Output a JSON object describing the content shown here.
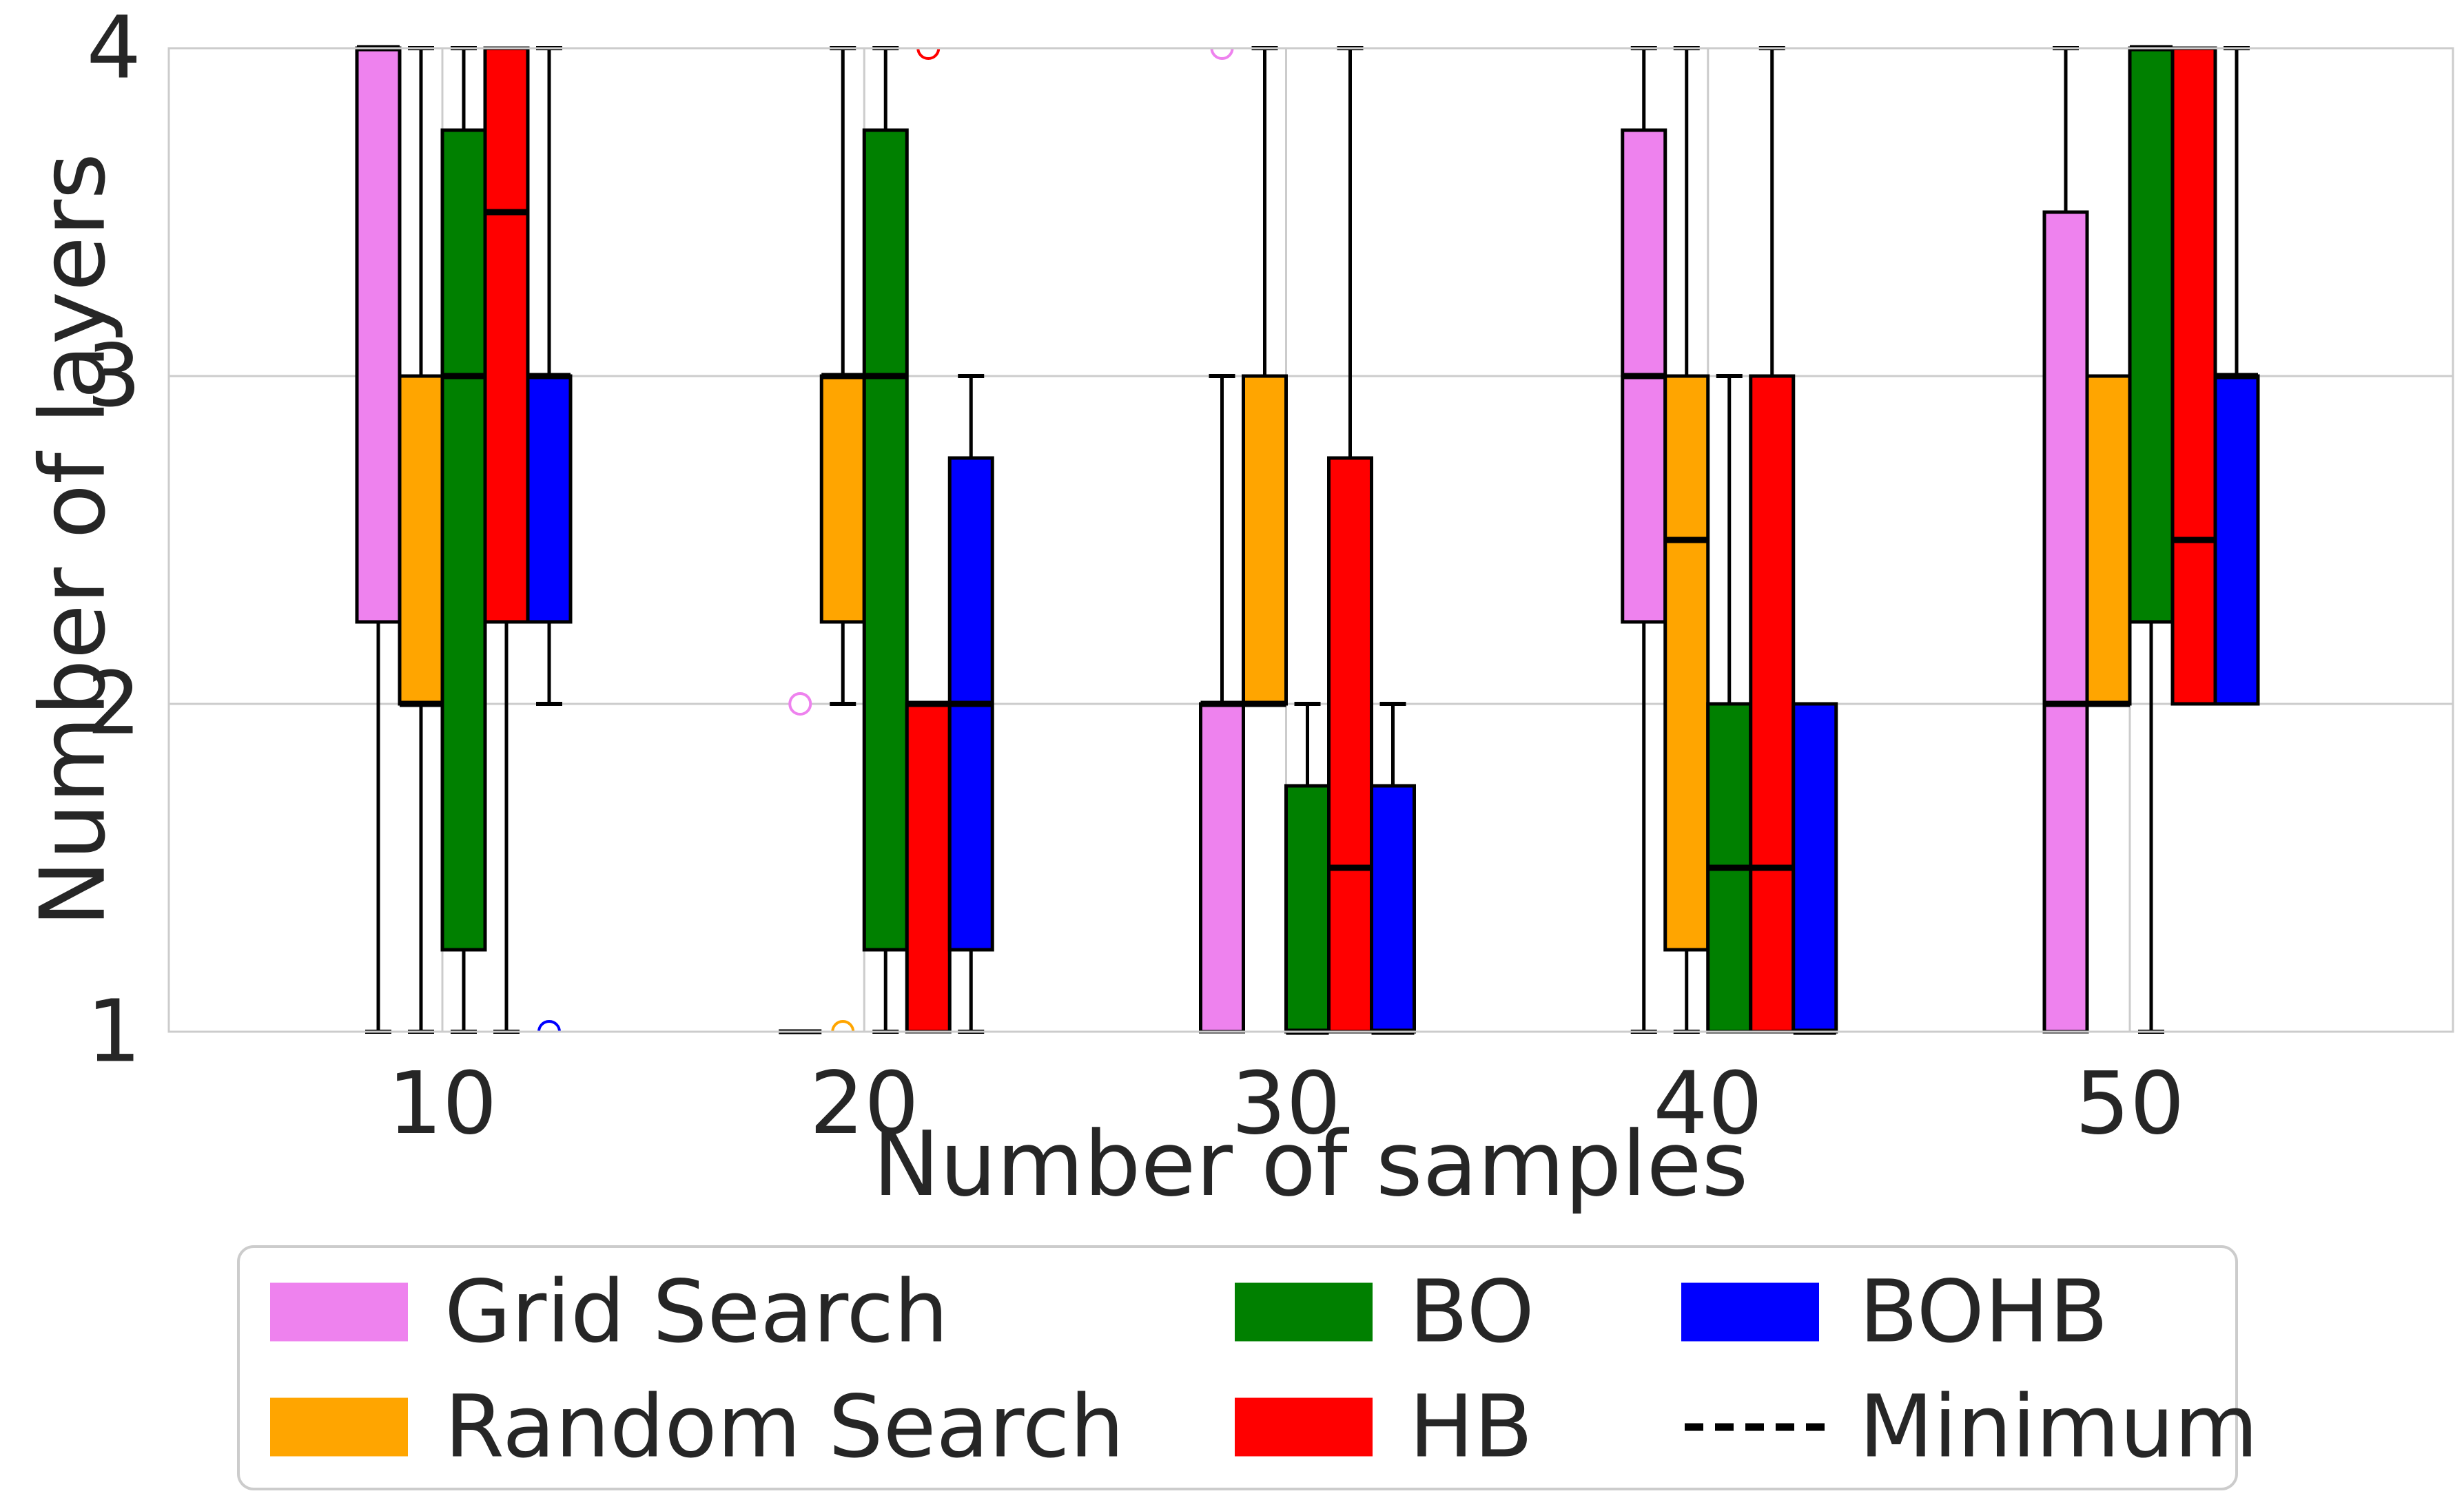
{
  "chart_data": {
    "type": "box",
    "title": "",
    "xlabel": "Number of samples",
    "ylabel": "Number of layers",
    "x_categories": [
      "10",
      "20",
      "30",
      "40",
      "50"
    ],
    "yticks": [
      "1",
      "2",
      "3",
      "4"
    ],
    "ylim": [
      1,
      4
    ],
    "grid": true,
    "legend_position": "below-chart",
    "colors": {
      "text": "#262626",
      "grid": "#cccccc",
      "frame": "#cccccc",
      "box_edge": "#000000",
      "median": "#000000",
      "plot_bg": "#ffffff"
    },
    "series": [
      {
        "name": "Grid Search",
        "color": "#EE82EE",
        "boxes": [
          {
            "x": "10",
            "whislo": 1,
            "q1": 2.25,
            "med": 4,
            "q3": 4,
            "whishi": 4,
            "fliers": []
          },
          {
            "x": "20",
            "whislo": 1,
            "q1": 1,
            "med": 1,
            "q3": 1,
            "whishi": 1,
            "fliers": [
              2
            ]
          },
          {
            "x": "30",
            "whislo": 1,
            "q1": 1,
            "med": 2,
            "q3": 2,
            "whishi": 3,
            "fliers": [
              4
            ]
          },
          {
            "x": "40",
            "whislo": 1,
            "q1": 2.25,
            "med": 3,
            "q3": 3.75,
            "whishi": 4,
            "fliers": []
          },
          {
            "x": "50",
            "whislo": 1,
            "q1": 1,
            "med": 2,
            "q3": 3.5,
            "whishi": 4,
            "fliers": []
          }
        ]
      },
      {
        "name": "Random Search",
        "color": "#FFA500",
        "boxes": [
          {
            "x": "10",
            "whislo": 1,
            "q1": 2,
            "med": 2,
            "q3": 3,
            "whishi": 4,
            "fliers": []
          },
          {
            "x": "20",
            "whislo": 2,
            "q1": 2.25,
            "med": 3,
            "q3": 3,
            "whishi": 4,
            "fliers": [
              1
            ]
          },
          {
            "x": "30",
            "whislo": 2,
            "q1": 2,
            "med": 2,
            "q3": 3,
            "whishi": 4,
            "fliers": []
          },
          {
            "x": "40",
            "whislo": 1,
            "q1": 1.25,
            "med": 2.5,
            "q3": 3,
            "whishi": 4,
            "fliers": []
          },
          {
            "x": "50",
            "whislo": 2,
            "q1": 2,
            "med": 2,
            "q3": 3,
            "whishi": 3,
            "fliers": []
          }
        ]
      },
      {
        "name": "BO",
        "color": "#008000",
        "boxes": [
          {
            "x": "10",
            "whislo": 1,
            "q1": 1.25,
            "med": 3,
            "q3": 3.75,
            "whishi": 4,
            "fliers": []
          },
          {
            "x": "20",
            "whislo": 1,
            "q1": 1.25,
            "med": 3,
            "q3": 3.75,
            "whishi": 4,
            "fliers": []
          },
          {
            "x": "30",
            "whislo": 1,
            "q1": 1,
            "med": 1,
            "q3": 1.75,
            "whishi": 2,
            "fliers": []
          },
          {
            "x": "40",
            "whislo": 1,
            "q1": 1,
            "med": 1.5,
            "q3": 2,
            "whishi": 3,
            "fliers": []
          },
          {
            "x": "50",
            "whislo": 1,
            "q1": 2.25,
            "med": 4,
            "q3": 4,
            "whishi": 4,
            "fliers": []
          }
        ]
      },
      {
        "name": "HB",
        "color": "#FF0000",
        "boxes": [
          {
            "x": "10",
            "whislo": 1,
            "q1": 2.25,
            "med": 3.5,
            "q3": 4,
            "whishi": 4,
            "fliers": []
          },
          {
            "x": "20",
            "whislo": 1,
            "q1": 1,
            "med": 2,
            "q3": 2,
            "whishi": 2,
            "fliers": [
              4
            ]
          },
          {
            "x": "30",
            "whislo": 1,
            "q1": 1,
            "med": 1.5,
            "q3": 2.75,
            "whishi": 4,
            "fliers": []
          },
          {
            "x": "40",
            "whislo": 1,
            "q1": 1,
            "med": 1.5,
            "q3": 3,
            "whishi": 4,
            "fliers": []
          },
          {
            "x": "50",
            "whislo": 2,
            "q1": 2,
            "med": 2.5,
            "q3": 4,
            "whishi": 4,
            "fliers": []
          }
        ]
      },
      {
        "name": "BOHB",
        "color": "#0000FF",
        "boxes": [
          {
            "x": "10",
            "whislo": 2,
            "q1": 2.25,
            "med": 3,
            "q3": 3,
            "whishi": 4,
            "fliers": [
              1
            ]
          },
          {
            "x": "20",
            "whislo": 1,
            "q1": 1.25,
            "med": 2,
            "q3": 2.75,
            "whishi": 3,
            "fliers": []
          },
          {
            "x": "30",
            "whislo": 1,
            "q1": 1,
            "med": 1,
            "q3": 1.75,
            "whishi": 2,
            "fliers": []
          },
          {
            "x": "40",
            "whislo": 1,
            "q1": 1,
            "med": 1,
            "q3": 2,
            "whishi": 2,
            "fliers": []
          },
          {
            "x": "50",
            "whislo": 2,
            "q1": 2,
            "med": 3,
            "q3": 3,
            "whishi": 4,
            "fliers": []
          }
        ]
      }
    ],
    "legend": {
      "columns": [
        [
          {
            "label": "Grid Search",
            "swatch": "box",
            "color": "#EE82EE"
          },
          {
            "label": "Random Search",
            "swatch": "box",
            "color": "#FFA500"
          }
        ],
        [
          {
            "label": "BO",
            "swatch": "box",
            "color": "#008000"
          },
          {
            "label": "HB",
            "swatch": "box",
            "color": "#FF0000"
          }
        ],
        [
          {
            "label": "BOHB",
            "swatch": "box",
            "color": "#0000FF"
          },
          {
            "label": "Minimum",
            "swatch": "dash",
            "color": "#000000"
          }
        ]
      ]
    }
  }
}
